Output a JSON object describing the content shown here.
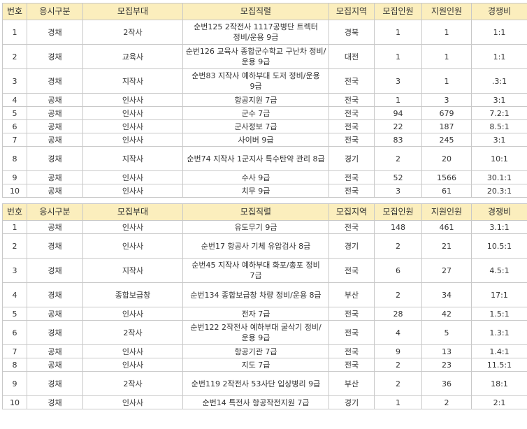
{
  "headers": [
    "번호",
    "응시구분",
    "모집부대",
    "모집직렬",
    "모집지역",
    "모집인원",
    "지원인원",
    "경쟁비"
  ],
  "table1": [
    {
      "no": "1",
      "type": "경채",
      "unit": "2작사",
      "position": "순번125 2작전사 1117공병단 트렉터 정비/운용 9급",
      "region": "경북",
      "recruit": "1",
      "apply": "1",
      "ratio": "1:1"
    },
    {
      "no": "2",
      "type": "경채",
      "unit": "교육사",
      "position": "순번126 교육사 종합군수학교 구난차 정비/운용 9급",
      "region": "대전",
      "recruit": "1",
      "apply": "1",
      "ratio": "1:1"
    },
    {
      "no": "3",
      "type": "경채",
      "unit": "지작사",
      "position": "순번83 지작사 예하부대 도저 정비/운용 9급",
      "region": "전국",
      "recruit": "3",
      "apply": "1",
      "ratio": ".3:1"
    },
    {
      "no": "4",
      "type": "공채",
      "unit": "인사사",
      "position": "항공지원 7급",
      "region": "전국",
      "recruit": "1",
      "apply": "3",
      "ratio": "3:1"
    },
    {
      "no": "5",
      "type": "공채",
      "unit": "인사사",
      "position": "군수 7급",
      "region": "전국",
      "recruit": "94",
      "apply": "679",
      "ratio": "7.2:1"
    },
    {
      "no": "6",
      "type": "공채",
      "unit": "인사사",
      "position": "군사정보 7급",
      "region": "전국",
      "recruit": "22",
      "apply": "187",
      "ratio": "8.5:1"
    },
    {
      "no": "7",
      "type": "공채",
      "unit": "인사사",
      "position": "사이버 9급",
      "region": "전국",
      "recruit": "83",
      "apply": "245",
      "ratio": "3:1"
    },
    {
      "no": "8",
      "type": "경채",
      "unit": "지작사",
      "position": "순번74 지작사 1군지사 특수탄약 관리 8급",
      "region": "경기",
      "recruit": "2",
      "apply": "20",
      "ratio": "10:1"
    },
    {
      "no": "9",
      "type": "공채",
      "unit": "인사사",
      "position": "수사 9급",
      "region": "전국",
      "recruit": "52",
      "apply": "1566",
      "ratio": "30.1:1"
    },
    {
      "no": "10",
      "type": "공채",
      "unit": "인사사",
      "position": "치무 9급",
      "region": "전국",
      "recruit": "3",
      "apply": "61",
      "ratio": "20.3:1"
    }
  ],
  "table2": [
    {
      "no": "1",
      "type": "공채",
      "unit": "인사사",
      "position": "유도무기 9급",
      "region": "전국",
      "recruit": "148",
      "apply": "461",
      "ratio": "3.1:1"
    },
    {
      "no": "2",
      "type": "경채",
      "unit": "인사사",
      "position": "순번17 항공사 기체 유압검사 8급",
      "region": "경기",
      "recruit": "2",
      "apply": "21",
      "ratio": "10.5:1"
    },
    {
      "no": "3",
      "type": "경채",
      "unit": "지작사",
      "position": "순번45 지작사 예하부대 화포/총포 정비 7급",
      "region": "전국",
      "recruit": "6",
      "apply": "27",
      "ratio": "4.5:1"
    },
    {
      "no": "4",
      "type": "경채",
      "unit": "종합보급창",
      "position": "순번134 종합보급창 차량 정비/운용 8급",
      "region": "부산",
      "recruit": "2",
      "apply": "34",
      "ratio": "17:1"
    },
    {
      "no": "5",
      "type": "공채",
      "unit": "인사사",
      "position": "전자 7급",
      "region": "전국",
      "recruit": "28",
      "apply": "42",
      "ratio": "1.5:1"
    },
    {
      "no": "6",
      "type": "경채",
      "unit": "2작사",
      "position": "순번122 2작전사 예하부대 굴삭기 정비/운용 9급",
      "region": "전국",
      "recruit": "4",
      "apply": "5",
      "ratio": "1.3:1"
    },
    {
      "no": "7",
      "type": "공채",
      "unit": "인사사",
      "position": "항공기관 7급",
      "region": "전국",
      "recruit": "9",
      "apply": "13",
      "ratio": "1.4:1"
    },
    {
      "no": "8",
      "type": "공채",
      "unit": "인사사",
      "position": "지도 7급",
      "region": "전국",
      "recruit": "2",
      "apply": "23",
      "ratio": "11.5:1"
    },
    {
      "no": "9",
      "type": "경채",
      "unit": "2작사",
      "position": "순번119 2작전사 53사단 입상병리 9급",
      "region": "부산",
      "recruit": "2",
      "apply": "36",
      "ratio": "18:1"
    },
    {
      "no": "10",
      "type": "경채",
      "unit": "인사사",
      "position": "순번14 특전사 항공작전지원 7급",
      "region": "경기",
      "recruit": "1",
      "apply": "2",
      "ratio": "2:1"
    }
  ]
}
